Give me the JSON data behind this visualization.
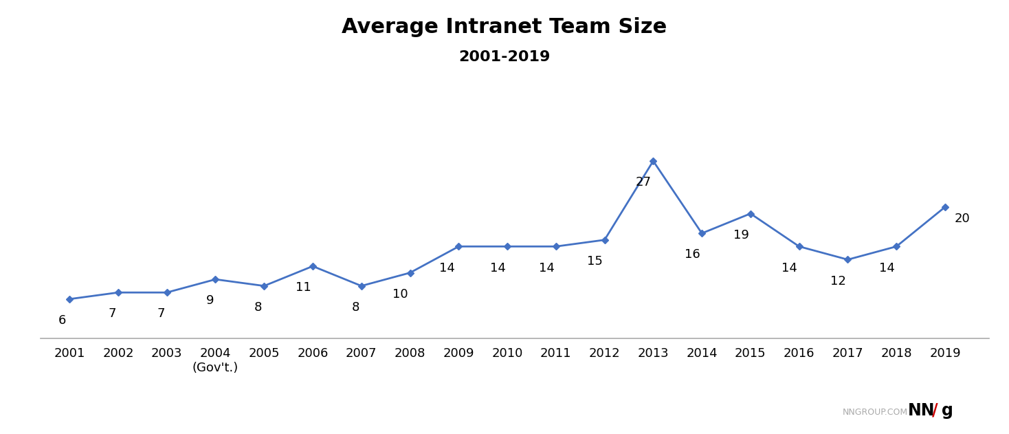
{
  "title": "Average Intranet Team Size",
  "subtitle": "2001-2019",
  "years": [
    2001,
    2002,
    2003,
    2004,
    2005,
    2006,
    2007,
    2008,
    2009,
    2010,
    2011,
    2012,
    2013,
    2014,
    2015,
    2016,
    2017,
    2018,
    2019
  ],
  "values": [
    6,
    7,
    7,
    9,
    8,
    11,
    8,
    10,
    14,
    14,
    14,
    15,
    27,
    16,
    19,
    14,
    12,
    14,
    20
  ],
  "x_labels": [
    "2001",
    "2002",
    "2003",
    "2004\n(Gov't.)",
    "2005",
    "2006",
    "2007",
    "2008",
    "2009",
    "2010",
    "2011",
    "2012",
    "2013",
    "2014",
    "2015",
    "2016",
    "2017",
    "2018",
    "2019"
  ],
  "line_color": "#4472C4",
  "marker_color": "#4472C4",
  "background_color": "#ffffff",
  "title_fontsize": 22,
  "subtitle_fontsize": 16,
  "tick_fontsize": 13,
  "annotation_fontsize": 13,
  "ylim": [
    0,
    33
  ],
  "xlim_left": 2000.4,
  "xlim_right": 2019.9,
  "nngroup_text": "NNGROUP.COM",
  "nngroup_text_color": "#aaaaaa",
  "nngroup_nn_color": "#000000",
  "nngroup_slash_color": "#cc0000",
  "nngroup_text_fontsize": 9,
  "nngroup_logo_fontsize": 17
}
